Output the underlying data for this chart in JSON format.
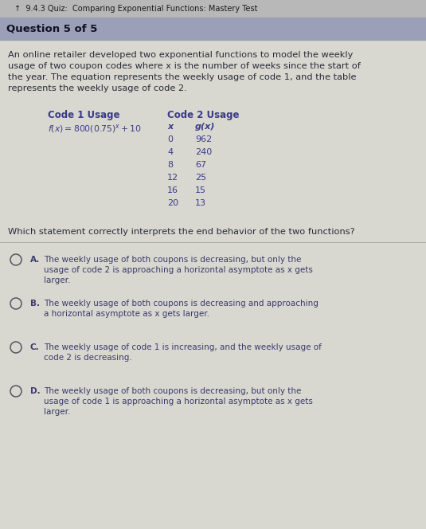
{
  "header_text": "9.4.3 Quiz:  Comparing Exponential Functions: Mastery Test",
  "question_label": "Question 5 of 5",
  "body_text": "An online retailer developed two exponential functions to model the weekly\nusage of two coupon codes where x is the number of weeks since the start of\nthe year. The equation represents the weekly usage of code 1, and the table\nrepresents the weekly usage of code 2.",
  "col1_header": "Code 1 Usage",
  "col2_header": "Code 2 Usage",
  "table_headers": [
    "x",
    "g(x)"
  ],
  "table_data": [
    [
      0,
      962
    ],
    [
      4,
      240
    ],
    [
      8,
      67
    ],
    [
      12,
      25
    ],
    [
      16,
      15
    ],
    [
      20,
      13
    ]
  ],
  "question_text": "Which statement correctly interprets the end behavior of the two functions?",
  "choices": [
    {
      "label": "A.",
      "text": "The weekly usage of both coupons is decreasing, but only the\nusage of code 2 is approaching a horizontal asymptote as x gets\nlarger."
    },
    {
      "label": "B.",
      "text": "The weekly usage of both coupons is decreasing and approaching\na horizontal asymptote as x gets larger."
    },
    {
      "label": "C.",
      "text": "The weekly usage of code 1 is increasing, and the weekly usage of\ncode 2 is decreasing."
    },
    {
      "label": "D.",
      "text": "The weekly usage of both coupons is decreasing, but only the\nusage of code 1 is approaching a horizontal asymptote as x gets\nlarger."
    }
  ],
  "bg_main": "#e8e8e8",
  "bg_header": "#c8c8c8",
  "bg_question_label": "#b0b4c8",
  "bg_content": "#e0e0e0",
  "bg_choices": "#d8d8d8",
  "text_color_header": "#1a1a1a",
  "text_color_body": "#2a2a3a",
  "text_color_blue": "#3a3a8a",
  "text_color_choice": "#3a3a6a",
  "font_size_header": 7.0,
  "font_size_question_label": 9.5,
  "font_size_body": 8.2,
  "font_size_col_headers": 8.5,
  "font_size_table": 8.0,
  "font_size_question": 8.2,
  "font_size_choices": 7.5
}
